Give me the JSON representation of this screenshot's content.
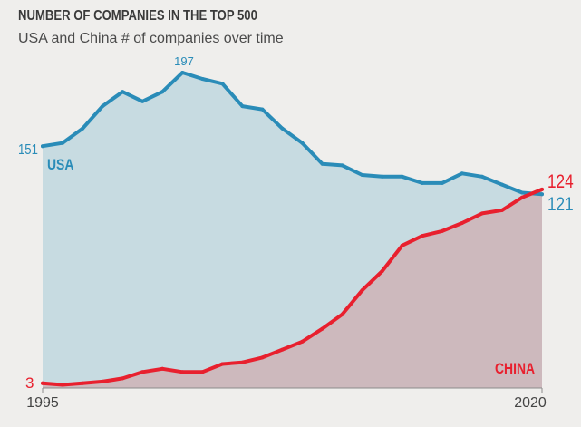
{
  "header": {
    "title": "NUMBER OF COMPANIES IN THE TOP 500",
    "subtitle": "USA and China # of companies over time"
  },
  "chart_data": {
    "type": "area",
    "title": "NUMBER OF COMPANIES IN THE TOP 500",
    "subtitle": "USA and China # of companies over time",
    "xlabel": "",
    "ylabel": "",
    "x": [
      1995,
      1996,
      1997,
      1998,
      1999,
      2000,
      2001,
      2002,
      2003,
      2004,
      2005,
      2006,
      2007,
      2008,
      2009,
      2010,
      2011,
      2012,
      2013,
      2014,
      2015,
      2016,
      2017,
      2018,
      2019,
      2020
    ],
    "xlim": [
      1995,
      2020
    ],
    "ylim": [
      0,
      210
    ],
    "x_tick_labels": [
      "1995",
      "2020"
    ],
    "grid": false,
    "legend": "inline labels",
    "series": [
      {
        "name": "USA",
        "label": "USA",
        "color": "#2a8cb8",
        "fill": "#c7dbe1",
        "values": [
          151,
          153,
          162,
          176,
          185,
          179,
          185,
          197,
          193,
          190,
          176,
          174,
          162,
          153,
          140,
          139,
          133,
          132,
          132,
          128,
          128,
          134,
          132,
          127,
          122,
          121
        ]
      },
      {
        "name": "China",
        "label": "CHINA",
        "color": "#e8202e",
        "fill": "#cdb9bd",
        "values": [
          3,
          2,
          3,
          4,
          6,
          10,
          12,
          10,
          10,
          15,
          16,
          19,
          24,
          29,
          37,
          46,
          61,
          73,
          89,
          95,
          98,
          103,
          109,
          111,
          119,
          124
        ]
      }
    ],
    "annotations": {
      "usa_start": "151",
      "usa_peak": "197",
      "usa_end": "121",
      "china_start": "3",
      "china_end": "124"
    }
  }
}
